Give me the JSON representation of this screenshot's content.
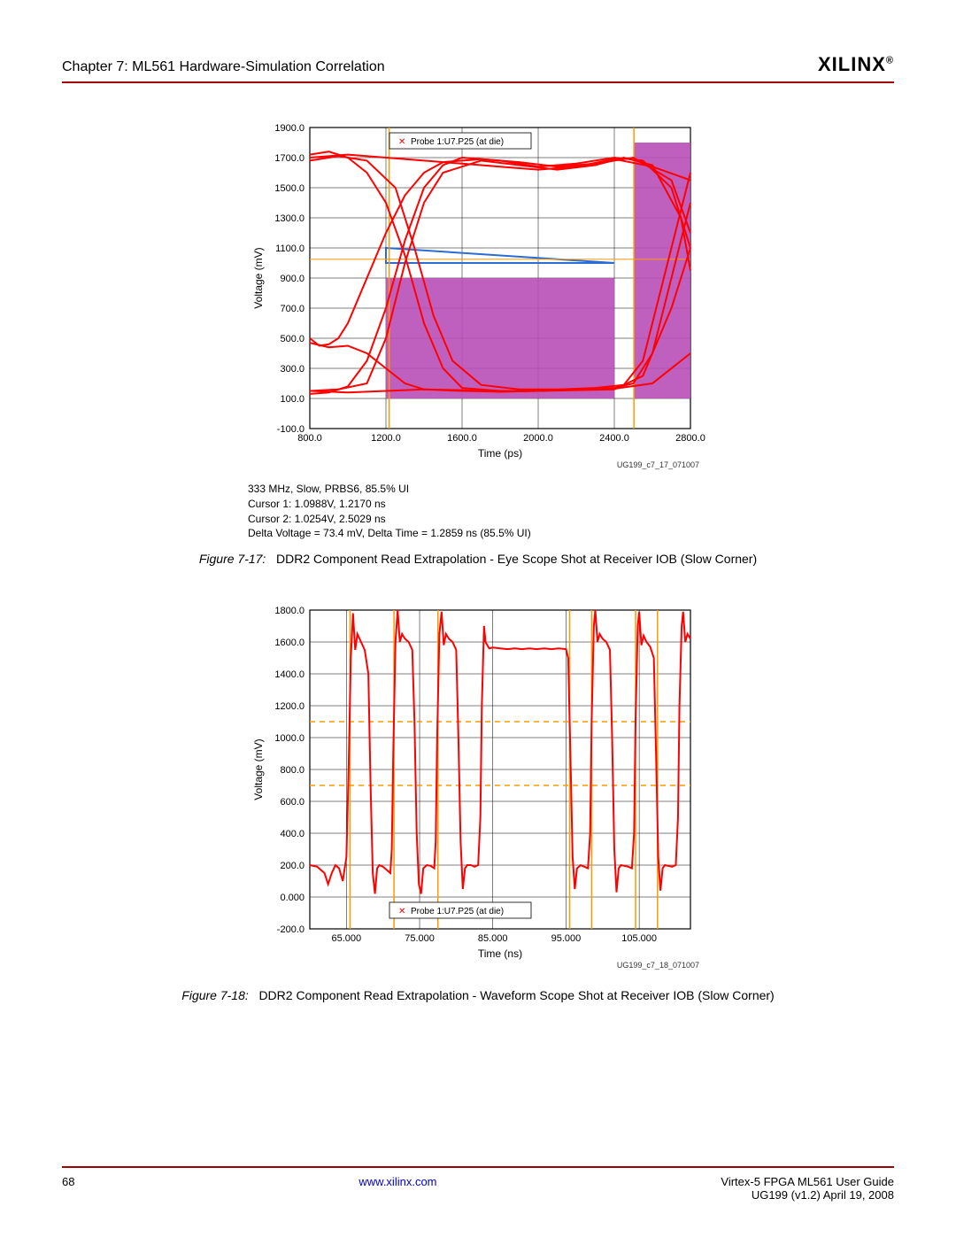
{
  "header": {
    "chapter_title": "Chapter 7: ML561 Hardware-Simulation Correlation",
    "logo_text": "XILINX",
    "logo_mark": "®"
  },
  "chart1": {
    "type": "eye-diagram",
    "ylabel": "Voltage (mV)",
    "xlabel": "Time (ps)",
    "legend_label": "Probe 1:U7.P25 (at die)",
    "legend_marker_color": "#ff0000",
    "xlim": [
      800.0,
      2800.0
    ],
    "ylim": [
      -100.0,
      1900.0
    ],
    "xticks": [
      800.0,
      1200.0,
      1600.0,
      2000.0,
      2400.0,
      2800.0
    ],
    "yticks": [
      -100.0,
      100.0,
      300.0,
      500.0,
      700.0,
      900.0,
      1100.0,
      1300.0,
      1500.0,
      1700.0,
      1900.0
    ],
    "xtick_labels": [
      "800.0",
      "1200.0",
      "1600.0",
      "2000.0",
      "2400.0",
      "2800.0"
    ],
    "ytick_labels": [
      "-100.0",
      "100.0",
      "300.0",
      "500.0",
      "700.0",
      "900.0",
      "1100.0",
      "1300.0",
      "1500.0",
      "1700.0",
      "1900.0"
    ],
    "grid_color": "#000000",
    "background_color": "#ffffff",
    "trace_color": "#ff0000",
    "trace_width": 2,
    "mask_color": "#b84fb8",
    "mask_polys": [
      [
        [
          1200,
          900
        ],
        [
          2400,
          900
        ],
        [
          2400,
          100
        ],
        [
          1200,
          100
        ]
      ],
      [
        [
          2500,
          1800
        ],
        [
          2800,
          1800
        ],
        [
          2800,
          100
        ],
        [
          2500,
          100
        ]
      ]
    ],
    "blue_tri": [
      [
        1200,
        1100
      ],
      [
        2400,
        1000
      ],
      [
        1200,
        1000
      ]
    ],
    "blue_color": "#2a6bd4",
    "cursor_lines_x": [
      1217,
      2503
    ],
    "cursor_color": "#ff9900",
    "hline_y": [
      1025
    ],
    "diagram_id": "UG199_c7_17_071007",
    "traces": [
      [
        [
          800,
          1720
        ],
        [
          900,
          1740
        ],
        [
          1000,
          1700
        ],
        [
          1100,
          1600
        ],
        [
          1200,
          1400
        ],
        [
          1300,
          1050
        ],
        [
          1400,
          600
        ],
        [
          1500,
          300
        ],
        [
          1600,
          170
        ],
        [
          1800,
          150
        ],
        [
          2000,
          150
        ],
        [
          2200,
          160
        ],
        [
          2400,
          170
        ],
        [
          2500,
          200
        ],
        [
          2600,
          400
        ],
        [
          2700,
          900
        ],
        [
          2800,
          1400
        ]
      ],
      [
        [
          800,
          1680
        ],
        [
          950,
          1710
        ],
        [
          1100,
          1680
        ],
        [
          1250,
          1500
        ],
        [
          1350,
          1100
        ],
        [
          1450,
          650
        ],
        [
          1550,
          350
        ],
        [
          1700,
          190
        ],
        [
          1900,
          160
        ],
        [
          2100,
          160
        ],
        [
          2300,
          170
        ],
        [
          2450,
          190
        ],
        [
          2550,
          350
        ],
        [
          2650,
          850
        ],
        [
          2750,
          1350
        ],
        [
          2800,
          1600
        ]
      ],
      [
        [
          800,
          130
        ],
        [
          900,
          140
        ],
        [
          1000,
          180
        ],
        [
          1100,
          350
        ],
        [
          1200,
          700
        ],
        [
          1300,
          1150
        ],
        [
          1400,
          1500
        ],
        [
          1500,
          1650
        ],
        [
          1600,
          1700
        ],
        [
          1800,
          1680
        ],
        [
          2000,
          1640
        ],
        [
          2200,
          1660
        ],
        [
          2400,
          1700
        ],
        [
          2550,
          1680
        ],
        [
          2700,
          1500
        ],
        [
          2800,
          1100
        ]
      ],
      [
        [
          800,
          150
        ],
        [
          950,
          160
        ],
        [
          1100,
          200
        ],
        [
          1200,
          500
        ],
        [
          1300,
          1000
        ],
        [
          1400,
          1400
        ],
        [
          1500,
          1600
        ],
        [
          1700,
          1680
        ],
        [
          1900,
          1650
        ],
        [
          2100,
          1620
        ],
        [
          2300,
          1650
        ],
        [
          2450,
          1700
        ],
        [
          2600,
          1650
        ],
        [
          2750,
          1300
        ],
        [
          2800,
          950
        ]
      ],
      [
        [
          800,
          1700
        ],
        [
          1000,
          1720
        ],
        [
          1200,
          1700
        ],
        [
          1400,
          1680
        ],
        [
          1600,
          1660
        ],
        [
          1800,
          1640
        ],
        [
          2000,
          1620
        ],
        [
          2200,
          1640
        ],
        [
          2400,
          1690
        ],
        [
          2600,
          1640
        ],
        [
          2800,
          1550
        ]
      ],
      [
        [
          800,
          150
        ],
        [
          1000,
          140
        ],
        [
          1200,
          150
        ],
        [
          1400,
          160
        ],
        [
          1600,
          155
        ],
        [
          1800,
          145
        ],
        [
          2000,
          150
        ],
        [
          2200,
          160
        ],
        [
          2400,
          165
        ],
        [
          2600,
          200
        ],
        [
          2800,
          400
        ]
      ],
      [
        [
          800,
          500
        ],
        [
          850,
          450
        ],
        [
          900,
          460
        ],
        [
          950,
          500
        ],
        [
          1000,
          600
        ],
        [
          1100,
          900
        ],
        [
          1200,
          1200
        ],
        [
          1300,
          1450
        ],
        [
          1400,
          1600
        ],
        [
          1500,
          1670
        ],
        [
          1700,
          1690
        ],
        [
          1900,
          1670
        ],
        [
          2100,
          1640
        ],
        [
          2300,
          1660
        ],
        [
          2500,
          1700
        ],
        [
          2700,
          1550
        ],
        [
          2800,
          1200
        ]
      ],
      [
        [
          800,
          470
        ],
        [
          900,
          440
        ],
        [
          1000,
          450
        ],
        [
          1100,
          400
        ],
        [
          1200,
          300
        ],
        [
          1300,
          200
        ],
        [
          1400,
          160
        ],
        [
          1600,
          150
        ],
        [
          1800,
          145
        ],
        [
          2000,
          150
        ],
        [
          2200,
          155
        ],
        [
          2400,
          160
        ],
        [
          2550,
          250
        ],
        [
          2700,
          700
        ],
        [
          2800,
          1100
        ]
      ]
    ],
    "cursor_info": [
      "333 MHz, Slow, PRBS6, 85.5% UI",
      "Cursor 1: 1.0988V, 1.2170 ns",
      "Cursor 2: 1.0254V, 2.5029 ns",
      "Delta Voltage = 73.4 mV, Delta Time = 1.2859 ns (85.5% UI)"
    ]
  },
  "caption1_label": "Figure 7-17:",
  "caption1_text": "DDR2 Component Read Extrapolation - Eye Scope Shot at Receiver IOB (Slow Corner)",
  "chart2": {
    "type": "line",
    "ylabel": "Voltage (mV)",
    "xlabel": "Time (ns)",
    "legend_label": "Probe 1:U7.P25 (at die)",
    "legend_marker_color": "#ff0000",
    "xlim": [
      60.0,
      112.0
    ],
    "ylim": [
      -200.0,
      1800.0
    ],
    "xticks": [
      65.0,
      75.0,
      85.0,
      95.0,
      105.0
    ],
    "yticks": [
      -200.0,
      0.0,
      200.0,
      400.0,
      600.0,
      800.0,
      1000.0,
      1200.0,
      1400.0,
      1600.0,
      1800.0
    ],
    "xtick_labels": [
      "65.000",
      "75.000",
      "85.000",
      "95.000",
      "105.000"
    ],
    "ytick_labels": [
      "-200.0",
      "0.000",
      "200.0",
      "400.0",
      "600.0",
      "800.0",
      "1000.0",
      "1200.0",
      "1400.0",
      "1600.0",
      "1800.0"
    ],
    "grid_color": "#000000",
    "background_color": "#ffffff",
    "trace_color": "#ff0000",
    "trace_width": 2,
    "cursor_lines_x": [
      65.5,
      71.5,
      77.5,
      95.5,
      98.5,
      104.5,
      107.5
    ],
    "cursor_color": "#ff9900",
    "hlines_y": [
      700,
      1100
    ],
    "hline_color": "#ff9900",
    "diagram_id": "UG199_c7_18_071007",
    "trace": [
      [
        60,
        200
      ],
      [
        61,
        190
      ],
      [
        62,
        150
      ],
      [
        62.5,
        80
      ],
      [
        63,
        150
      ],
      [
        63.5,
        200
      ],
      [
        64,
        180
      ],
      [
        64.5,
        100
      ],
      [
        65,
        250
      ],
      [
        65.3,
        800
      ],
      [
        65.6,
        1500
      ],
      [
        65.9,
        1780
      ],
      [
        66.2,
        1550
      ],
      [
        66.5,
        1650
      ],
      [
        67,
        1600
      ],
      [
        67.5,
        1550
      ],
      [
        68,
        1400
      ],
      [
        68.3,
        700
      ],
      [
        68.6,
        150
      ],
      [
        68.9,
        20
      ],
      [
        69.2,
        180
      ],
      [
        69.5,
        200
      ],
      [
        70,
        190
      ],
      [
        70.5,
        170
      ],
      [
        71,
        150
      ],
      [
        71.2,
        300
      ],
      [
        71.4,
        900
      ],
      [
        71.7,
        1600
      ],
      [
        72,
        1800
      ],
      [
        72.3,
        1600
      ],
      [
        72.6,
        1650
      ],
      [
        73,
        1620
      ],
      [
        73.5,
        1600
      ],
      [
        74,
        1550
      ],
      [
        74.3,
        1100
      ],
      [
        74.6,
        400
      ],
      [
        74.9,
        80
      ],
      [
        75.2,
        20
      ],
      [
        75.5,
        180
      ],
      [
        76,
        200
      ],
      [
        76.5,
        195
      ],
      [
        77,
        180
      ],
      [
        77.2,
        350
      ],
      [
        77.4,
        1000
      ],
      [
        77.7,
        1650
      ],
      [
        78,
        1790
      ],
      [
        78.3,
        1580
      ],
      [
        78.6,
        1650
      ],
      [
        79,
        1620
      ],
      [
        79.5,
        1600
      ],
      [
        80,
        1550
      ],
      [
        80.3,
        1000
      ],
      [
        80.6,
        350
      ],
      [
        80.9,
        50
      ],
      [
        81.2,
        180
      ],
      [
        81.5,
        200
      ],
      [
        82,
        200
      ],
      [
        82.5,
        190
      ],
      [
        83,
        200
      ],
      [
        83.3,
        500
      ],
      [
        83.5,
        1200
      ],
      [
        83.8,
        1700
      ],
      [
        84,
        1600
      ],
      [
        84.5,
        1560
      ],
      [
        85,
        1565
      ],
      [
        86,
        1560
      ],
      [
        87,
        1555
      ],
      [
        88,
        1560
      ],
      [
        89,
        1555
      ],
      [
        90,
        1560
      ],
      [
        91,
        1555
      ],
      [
        92,
        1560
      ],
      [
        93,
        1555
      ],
      [
        94,
        1560
      ],
      [
        95,
        1555
      ],
      [
        95.3,
        1500
      ],
      [
        95.6,
        900
      ],
      [
        95.9,
        250
      ],
      [
        96.2,
        50
      ],
      [
        96.5,
        180
      ],
      [
        97,
        200
      ],
      [
        97.5,
        190
      ],
      [
        98,
        180
      ],
      [
        98.3,
        400
      ],
      [
        98.5,
        1100
      ],
      [
        98.8,
        1700
      ],
      [
        99,
        1800
      ],
      [
        99.3,
        1600
      ],
      [
        99.6,
        1650
      ],
      [
        100,
        1620
      ],
      [
        100.5,
        1600
      ],
      [
        101,
        1550
      ],
      [
        101.3,
        1000
      ],
      [
        101.6,
        300
      ],
      [
        101.9,
        30
      ],
      [
        102.2,
        180
      ],
      [
        102.5,
        200
      ],
      [
        103,
        195
      ],
      [
        103.5,
        190
      ],
      [
        104,
        180
      ],
      [
        104.3,
        400
      ],
      [
        104.5,
        1100
      ],
      [
        104.8,
        1700
      ],
      [
        105,
        1790
      ],
      [
        105.3,
        1580
      ],
      [
        105.6,
        1640
      ],
      [
        106,
        1600
      ],
      [
        106.5,
        1570
      ],
      [
        107,
        1500
      ],
      [
        107.3,
        900
      ],
      [
        107.6,
        250
      ],
      [
        107.9,
        40
      ],
      [
        108.2,
        180
      ],
      [
        108.5,
        200
      ],
      [
        109,
        195
      ],
      [
        109.5,
        190
      ],
      [
        110,
        200
      ],
      [
        110.3,
        500
      ],
      [
        110.5,
        1200
      ],
      [
        110.8,
        1700
      ],
      [
        111,
        1790
      ],
      [
        111.3,
        1600
      ],
      [
        111.6,
        1650
      ],
      [
        112,
        1620
      ]
    ]
  },
  "caption2_label": "Figure 7-18:",
  "caption2_text": "DDR2 Component Read Extrapolation - Waveform Scope Shot at Receiver IOB (Slow Corner)",
  "footer": {
    "page_num": "68",
    "link": "www.xilinx.com",
    "doc_title": "Virtex-5 FPGA ML561 User Guide",
    "doc_rev": "UG199 (v1.2) April 19, 2008"
  },
  "style": {
    "border_color": "#a00000",
    "font_size_labels": 12,
    "font_size_ticks": 11
  }
}
